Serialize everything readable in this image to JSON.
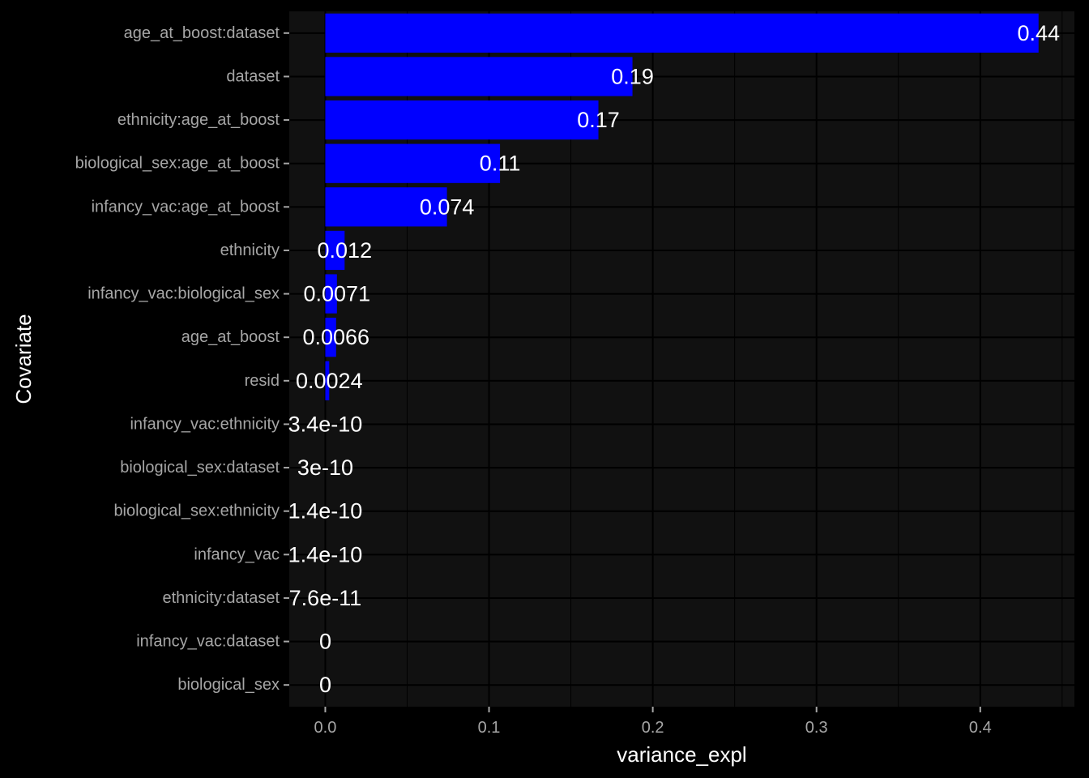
{
  "chart_data": {
    "type": "bar",
    "orientation": "horizontal",
    "xlabel": "variance_expl",
    "ylabel": "Covariate",
    "xlim": [
      -0.022,
      0.4575
    ],
    "xticks": [
      0.0,
      0.1,
      0.2,
      0.3,
      0.4
    ],
    "xtick_labels": [
      "0.0",
      "0.1",
      "0.2",
      "0.3",
      "0.4"
    ],
    "grid": true,
    "colors": {
      "background": "#000000",
      "panel": "#111111",
      "grid": "#000000",
      "bar": "#0000ff",
      "tick_label": "#a6a6a6",
      "title": "#ffffff",
      "data_label": "#ffffff"
    },
    "categories": [
      "age_at_boost:dataset",
      "dataset",
      "ethnicity:age_at_boost",
      "biological_sex:age_at_boost",
      "infancy_vac:age_at_boost",
      "ethnicity",
      "infancy_vac:biological_sex",
      "age_at_boost",
      "resid",
      "infancy_vac:ethnicity",
      "biological_sex:dataset",
      "biological_sex:ethnicity",
      "infancy_vac",
      "ethnicity:dataset",
      "infancy_vac:dataset",
      "biological_sex"
    ],
    "values": [
      0.4356,
      0.1876,
      0.1668,
      0.1067,
      0.0743,
      0.0118,
      0.0071,
      0.0066,
      0.0024,
      3.4e-10,
      3e-10,
      1.4e-10,
      1.4e-10,
      7.6e-11,
      0,
      0
    ],
    "labels": [
      "0.44",
      "0.19",
      "0.17",
      "0.11",
      "0.074",
      "0.012",
      "0.0071",
      "0.0066",
      "0.0024",
      "3.4e-10",
      "3e-10",
      "1.4e-10",
      "1.4e-10",
      "7.6e-11",
      "0",
      "0"
    ]
  }
}
